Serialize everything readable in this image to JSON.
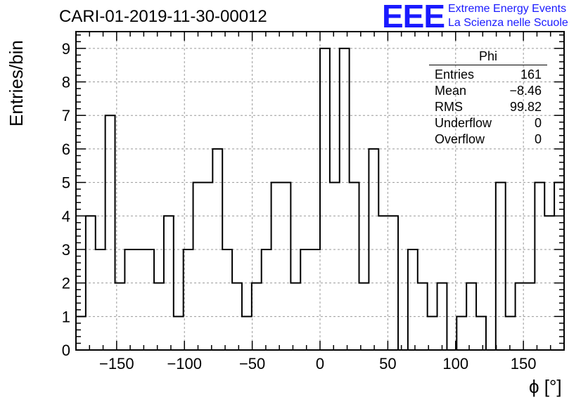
{
  "header": {
    "title": "CARI-01-2019-11-30-00012",
    "logo_text": "EEE",
    "logo_line1": "Extreme Energy Events",
    "logo_line2": "La Scienza nelle Scuole"
  },
  "stats_box": {
    "name": "Phi",
    "rows": [
      {
        "label": "Entries",
        "value": "161"
      },
      {
        "label": "Mean",
        "value": "−8.46"
      },
      {
        "label": "RMS",
        "value": "99.82"
      },
      {
        "label": "Underflow",
        "value": "0"
      },
      {
        "label": "Overflow",
        "value": "0"
      }
    ]
  },
  "chart_data": {
    "type": "histogram",
    "xlabel": "ϕ [°]",
    "ylabel": "Entries/bin",
    "xlim": [
      -180,
      180
    ],
    "ylim": [
      0,
      9.5
    ],
    "bin_width": 7.2,
    "xticks": [
      -150,
      -100,
      -50,
      0,
      50,
      100,
      150
    ],
    "yticks": [
      0,
      1,
      2,
      3,
      4,
      5,
      6,
      7,
      8,
      9
    ],
    "xtick_labels": [
      "−150",
      "−100",
      "−50",
      "0",
      "50",
      "100",
      "150"
    ],
    "ytick_labels": [
      "0",
      "1",
      "2",
      "3",
      "4",
      "5",
      "6",
      "7",
      "8",
      "9"
    ],
    "grid": true,
    "values": [
      1,
      4,
      3,
      7,
      2,
      3,
      3,
      3,
      2,
      4,
      1,
      3,
      5,
      5,
      6,
      3,
      2,
      1,
      2,
      3,
      5,
      5,
      2,
      3,
      3,
      9,
      5,
      9,
      5,
      2,
      6,
      4,
      4,
      0,
      3,
      2,
      1,
      2,
      0,
      1,
      2,
      1,
      0,
      5,
      1,
      2,
      2,
      5,
      4,
      5
    ]
  }
}
